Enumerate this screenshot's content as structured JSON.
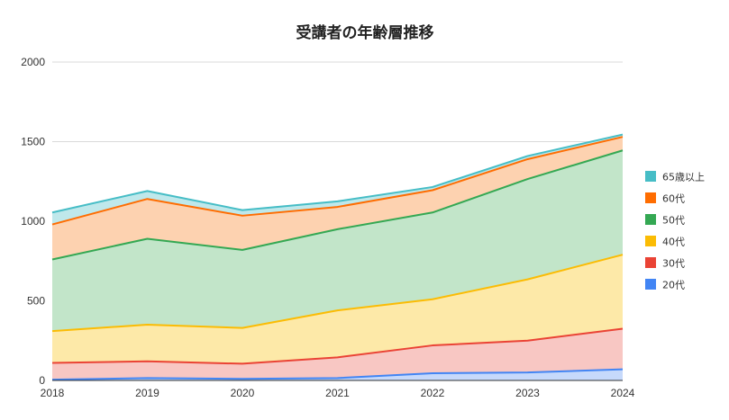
{
  "chart_data": {
    "type": "area",
    "stacked": true,
    "title": "受講者の年齢層推移",
    "xlabel": "",
    "ylabel": "",
    "categories": [
      "2018",
      "2019",
      "2020",
      "2021",
      "2022",
      "2023",
      "2024"
    ],
    "ylim": [
      0,
      2000
    ],
    "yticks": [
      "0",
      "500",
      "1000",
      "1500",
      "2000"
    ],
    "grid": true,
    "legend_position": "right",
    "series": [
      {
        "name": "20代",
        "color": "#4285f4",
        "fill": "#c6d9fb",
        "values": [
          5,
          15,
          10,
          15,
          45,
          50,
          70
        ]
      },
      {
        "name": "30代",
        "color": "#ea4335",
        "fill": "#f8c7c3",
        "values": [
          105,
          105,
          95,
          130,
          175,
          200,
          255
        ]
      },
      {
        "name": "40代",
        "color": "#fbbc04",
        "fill": "#fde9a8",
        "values": [
          200,
          230,
          225,
          295,
          290,
          385,
          465
        ]
      },
      {
        "name": "50代",
        "color": "#34a853",
        "fill": "#c2e5c9",
        "values": [
          450,
          540,
          490,
          510,
          545,
          630,
          655
        ]
      },
      {
        "name": "60代",
        "color": "#ff6d01",
        "fill": "#fdd2b0",
        "values": [
          220,
          250,
          215,
          140,
          140,
          125,
          85
        ]
      },
      {
        "name": "65歳以上",
        "color": "#46bdc6",
        "fill": "#bfe8eb",
        "values": [
          75,
          50,
          35,
          35,
          20,
          20,
          15
        ]
      }
    ]
  }
}
